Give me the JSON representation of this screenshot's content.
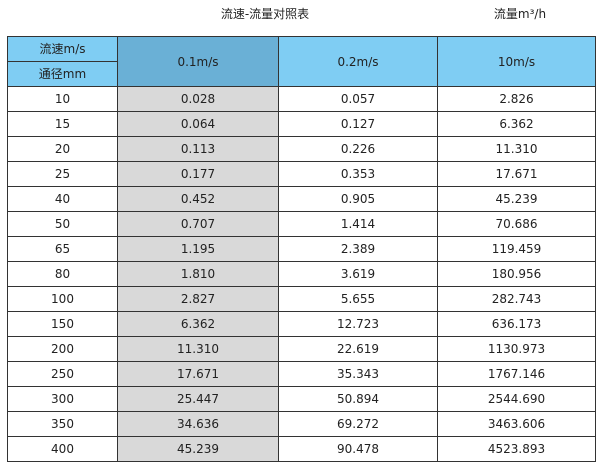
{
  "title": "流速-流量对照表",
  "unit_label": "流量m³/h",
  "header": {
    "velocity_label": "流速m/s",
    "diameter_label": "通径mm",
    "columns": [
      "0.1m/s",
      "0.2m/s",
      "10m/s"
    ]
  },
  "colors": {
    "header": "#7fcdf3",
    "header_selected": "#6ab0d6",
    "highlight_column": "#d9d9d9"
  },
  "rows": [
    [
      "10",
      "0.028",
      "0.057",
      "2.826"
    ],
    [
      "15",
      "0.064",
      "0.127",
      "6.362"
    ],
    [
      "20",
      "0.113",
      "0.226",
      "11.310"
    ],
    [
      "25",
      "0.177",
      "0.353",
      "17.671"
    ],
    [
      "40",
      "0.452",
      "0.905",
      "45.239"
    ],
    [
      "50",
      "0.707",
      "1.414",
      "70.686"
    ],
    [
      "65",
      "1.195",
      "2.389",
      "119.459"
    ],
    [
      "80",
      "1.810",
      "3.619",
      "180.956"
    ],
    [
      "100",
      "2.827",
      "5.655",
      "282.743"
    ],
    [
      "150",
      "6.362",
      "12.723",
      "636.173"
    ],
    [
      "200",
      "11.310",
      "22.619",
      "1130.973"
    ],
    [
      "250",
      "17.671",
      "35.343",
      "1767.146"
    ],
    [
      "300",
      "25.447",
      "50.894",
      "2544.690"
    ],
    [
      "350",
      "34.636",
      "69.272",
      "3463.606"
    ],
    [
      "400",
      "45.239",
      "90.478",
      "4523.893"
    ]
  ]
}
